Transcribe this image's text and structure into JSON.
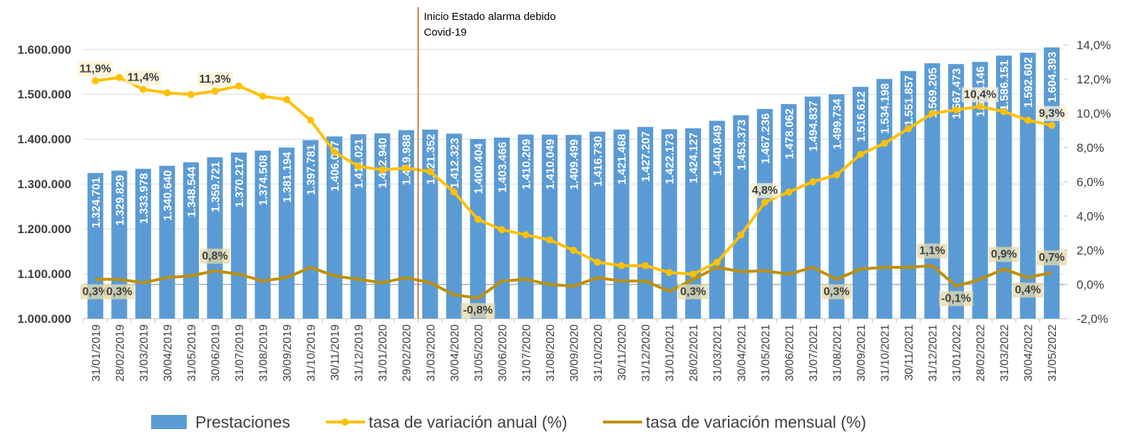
{
  "chart_data": {
    "type": "bar_line",
    "annotation": [
      "Inicio Estado alarma debido",
      "Covid-19"
    ],
    "categories": [
      "31/01/2019",
      "28/02/2019",
      "31/03/2019",
      "30/04/2019",
      "31/05/2019",
      "30/06/2019",
      "31/07/2019",
      "31/08/2019",
      "30/09/2019",
      "31/10/2019",
      "30/11/2019",
      "31/12/2019",
      "31/01/2020",
      "29/02/2020",
      "31/03/2020",
      "30/04/2020",
      "31/05/2020",
      "30/06/2020",
      "31/07/2020",
      "31/08/2020",
      "30/09/2020",
      "31/10/2020",
      "30/11/2020",
      "31/12/2020",
      "31/01/2021",
      "28/02/2021",
      "31/03/2021",
      "30/04/2021",
      "31/05/2021",
      "30/06/2021",
      "31/07/2021",
      "31/08/2021",
      "30/09/2021",
      "31/10/2021",
      "30/11/2021",
      "31/12/2021",
      "31/01/2022",
      "28/02/2022",
      "31/03/2022",
      "30/04/2022",
      "31/05/2022"
    ],
    "series": [
      {
        "name": "Prestaciones",
        "type": "bar",
        "color": "#5b9bd5",
        "values": [
          1324701,
          1329829,
          1333978,
          1340640,
          1348544,
          1359721,
          1370217,
          1374508,
          1381194,
          1397781,
          1406007,
          1411021,
          1412940,
          1419988,
          1421352,
          1412323,
          1400404,
          1403466,
          1410209,
          1410049,
          1409499,
          1416730,
          1421468,
          1427207,
          1422173,
          1424127,
          1440849,
          1453373,
          1467236,
          1478062,
          1494837,
          1499734,
          1516612,
          1534198,
          1551857,
          1569205,
          1567473,
          1572146,
          1586151,
          1592602,
          1604393
        ],
        "value_labels": [
          "1.324.701",
          "1.329.829",
          "1.333.978",
          "1.340.640",
          "1.348.544",
          "1.359.721",
          "1.370.217",
          "1.374.508",
          "1.381.194",
          "1.397.781",
          "1.406.007",
          "1.411.021",
          "1.412.940",
          "1.419.988",
          "1.421.352",
          "1.412.323",
          "1.400.404",
          "1.403.466",
          "1.410.209",
          "1.410.049",
          "1.409.499",
          "1.416.730",
          "1.421.468",
          "1.427.207",
          "1.422.173",
          "1.424.127",
          "1.440.849",
          "1.453.373",
          "1.467.236",
          "1.478.062",
          "1.494.837",
          "1.499.734",
          "1.516.612",
          "1.534.198",
          "1.551.857",
          "1.569.205",
          "1.567.473",
          "1.572.146",
          "1.586.151",
          "1.592.602",
          "1.604.393"
        ]
      },
      {
        "name": "tasa de variación anual (%)",
        "type": "line",
        "axis": "y2",
        "color": "#ffc000",
        "markers": true,
        "values": [
          11.9,
          12.1,
          11.4,
          11.2,
          11.1,
          11.3,
          11.6,
          11.0,
          10.8,
          9.6,
          7.75,
          6.9,
          6.7,
          6.8,
          6.6,
          5.4,
          3.8,
          3.2,
          2.9,
          2.6,
          2.0,
          1.3,
          1.1,
          1.1,
          0.7,
          0.6,
          1.3,
          2.9,
          4.8,
          5.4,
          6.0,
          6.4,
          7.6,
          8.25,
          9.1,
          10.0,
          10.2,
          10.4,
          10.1,
          9.6,
          9.3
        ],
        "value_labels": [
          "11,9%",
          null,
          "11,4%",
          null,
          null,
          "11,3%",
          null,
          null,
          null,
          null,
          null,
          null,
          null,
          null,
          null,
          null,
          null,
          null,
          null,
          null,
          null,
          null,
          null,
          null,
          null,
          null,
          null,
          null,
          "4,8%",
          null,
          null,
          null,
          null,
          null,
          null,
          null,
          null,
          "10,4%",
          null,
          null,
          "9,3%"
        ]
      },
      {
        "name": "tasa de variación mensual (%)",
        "type": "line",
        "axis": "y2",
        "color": "#bf9000",
        "markers": false,
        "values": [
          0.3,
          0.3,
          0.1,
          0.4,
          0.5,
          0.8,
          0.6,
          0.2,
          0.4,
          1.0,
          0.5,
          0.3,
          0.1,
          0.4,
          0.1,
          -0.6,
          -0.8,
          0.2,
          0.3,
          0.0,
          -0.1,
          0.4,
          0.2,
          0.2,
          -0.4,
          0.3,
          1.0,
          0.75,
          0.8,
          0.6,
          1.0,
          0.3,
          0.9,
          1.0,
          1.0,
          1.1,
          -0.1,
          0.3,
          0.9,
          0.4,
          0.7
        ],
        "value_labels": [
          "0,3%",
          "0,3%",
          null,
          null,
          null,
          "0,8%",
          null,
          null,
          null,
          null,
          null,
          null,
          null,
          null,
          null,
          null,
          "-0,8%",
          null,
          null,
          null,
          null,
          null,
          null,
          null,
          null,
          "0,3%",
          null,
          null,
          null,
          null,
          null,
          "0,3%",
          null,
          null,
          null,
          "1,1%",
          "-0,1%",
          null,
          "0,9%",
          "0,4%",
          "0,7%"
        ]
      }
    ],
    "ylim": [
      1000000,
      1610000
    ],
    "yticks": [
      {
        "value": 1000000,
        "label": "1.000.000"
      },
      {
        "value": 1100000,
        "label": "1.100.000"
      },
      {
        "value": 1200000,
        "label": "1.200.000"
      },
      {
        "value": 1300000,
        "label": "1.300.000"
      },
      {
        "value": 1400000,
        "label": "1.400.000"
      },
      {
        "value": 1500000,
        "label": "1.500.000"
      },
      {
        "value": 1600000,
        "label": "1.600.000"
      }
    ],
    "y2lim": [
      -2,
      14
    ],
    "y2ticks": [
      {
        "value": -2,
        "label": "-2,0%"
      },
      {
        "value": 0,
        "label": "0,0%"
      },
      {
        "value": 2,
        "label": "2,0%"
      },
      {
        "value": 4,
        "label": "4,0%"
      },
      {
        "value": 6,
        "label": "6,0%"
      },
      {
        "value": 8,
        "label": "8,0%"
      },
      {
        "value": 10,
        "label": "10,0%"
      },
      {
        "value": 12,
        "label": "12,0%"
      },
      {
        "value": 14,
        "label": "14,0%"
      }
    ],
    "grid": true,
    "legend": "bottom"
  }
}
